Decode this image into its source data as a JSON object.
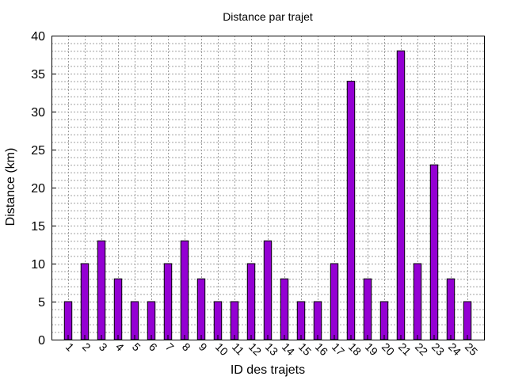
{
  "chart_data": {
    "type": "bar",
    "title": "Distance par trajet",
    "xlabel": "ID des trajets",
    "ylabel": "Distance (km)",
    "categories": [
      "1",
      "2",
      "3",
      "4",
      "5",
      "6",
      "7",
      "8",
      "9",
      "10",
      "11",
      "12",
      "13",
      "14",
      "15",
      "16",
      "17",
      "18",
      "19",
      "20",
      "21",
      "22",
      "23",
      "24",
      "25"
    ],
    "values": [
      5,
      10,
      13,
      8,
      5,
      5,
      10,
      13,
      8,
      5,
      5,
      10,
      13,
      8,
      5,
      5,
      10,
      34,
      8,
      5,
      38,
      10,
      23,
      8,
      5
    ],
    "ylim": [
      0,
      40
    ],
    "yticks": [
      0,
      5,
      10,
      15,
      20,
      25,
      30,
      35,
      40
    ],
    "y_minor_step": 1,
    "grid": true,
    "bar_color": "#9400d3",
    "bar_edge_color": "#000000",
    "grid_color": "#a0a0a0"
  }
}
